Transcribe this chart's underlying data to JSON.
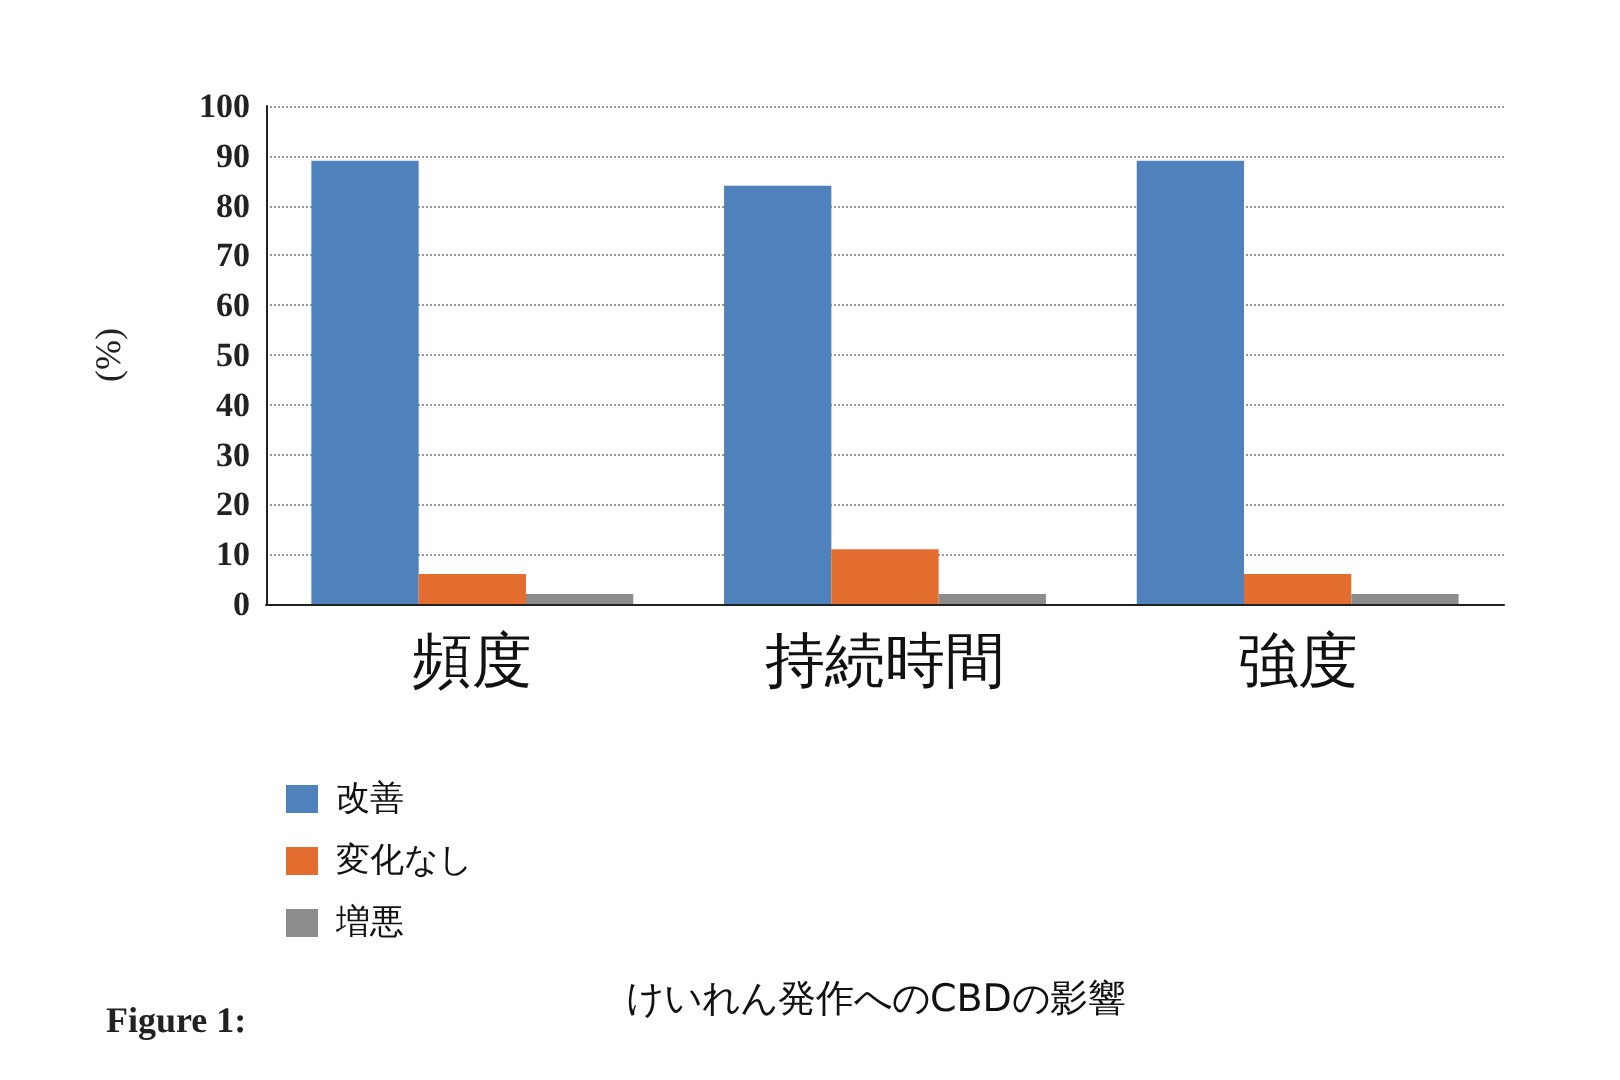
{
  "chart_data": {
    "type": "bar",
    "title": "けいれん発作へのCBDの影響",
    "ylabel": "(%)",
    "annotations": [
      "Figure 1:"
    ],
    "categories": [
      "頻度",
      "持続時間",
      "強度"
    ],
    "series": [
      {
        "name": "改善",
        "color": "#4f81bd",
        "values": [
          89,
          84,
          89
        ]
      },
      {
        "name": "変化なし",
        "color": "#e36c2f",
        "values": [
          6,
          11,
          6
        ]
      },
      {
        "name": "増悪",
        "color": "#8c8c8c",
        "values": [
          2,
          2,
          2
        ]
      }
    ],
    "ylim": [
      0,
      100
    ],
    "yticks": [
      0,
      10,
      20,
      30,
      40,
      50,
      60,
      70,
      80,
      90,
      100
    ],
    "grid": "y",
    "legend": "bottom left"
  }
}
